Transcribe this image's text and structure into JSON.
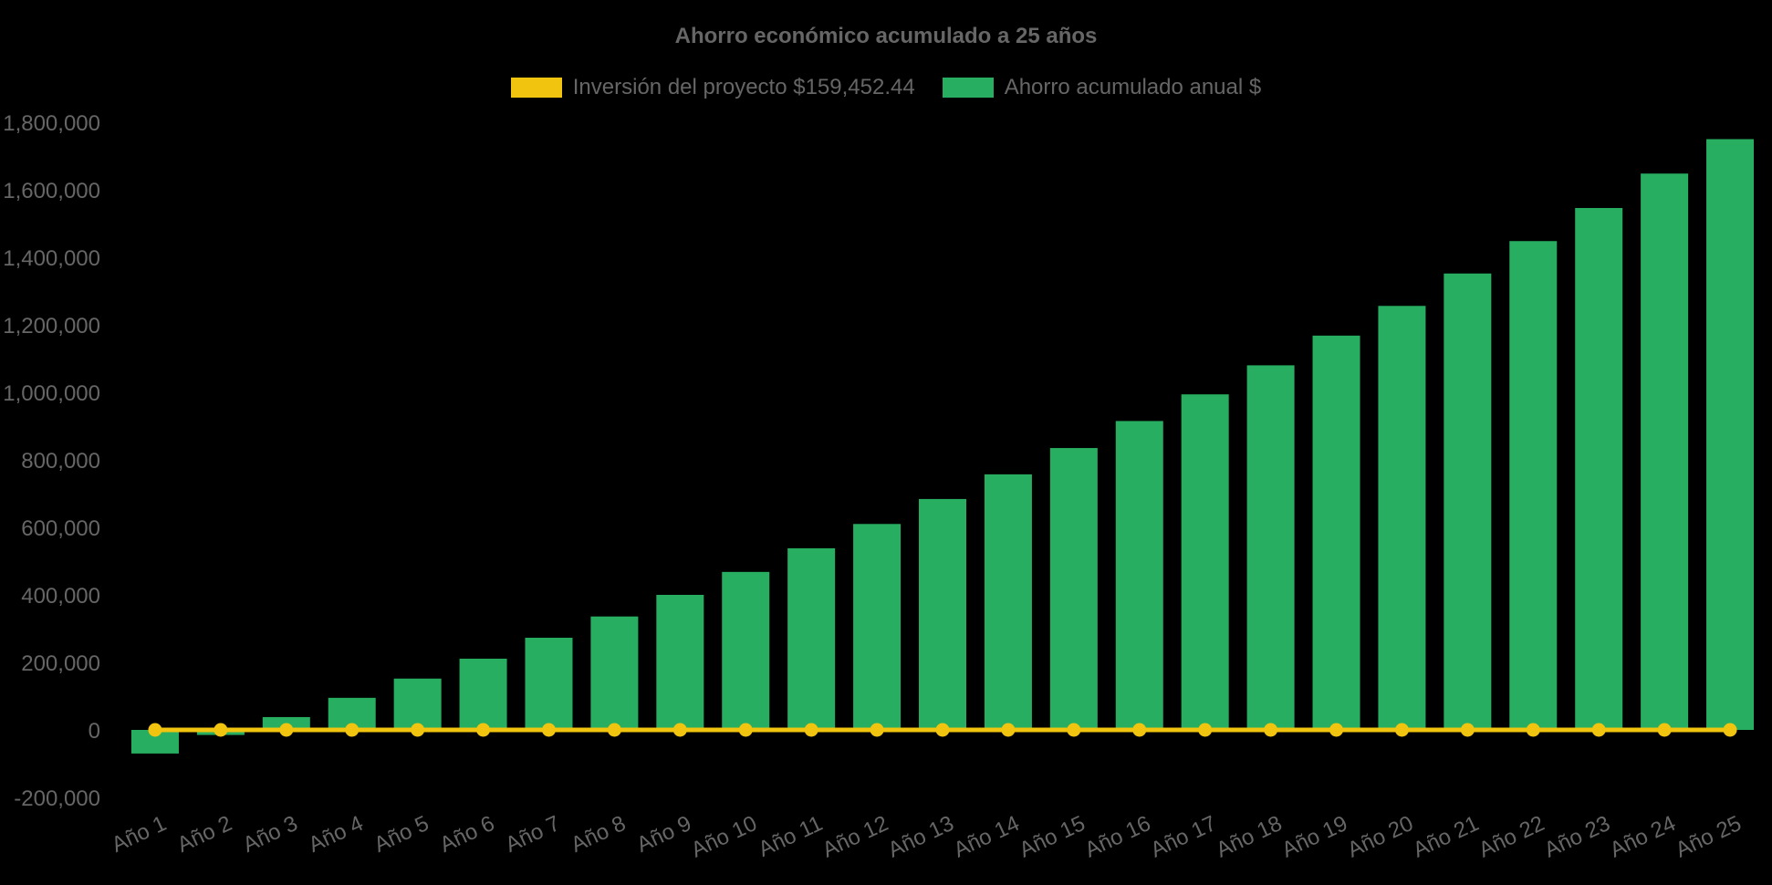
{
  "canvas": {
    "background": "#000000",
    "text_color": "#666666"
  },
  "chart_data": {
    "type": "bar",
    "title": "Ahorro económico acumulado a 25 años",
    "xlabel": "",
    "ylabel": "",
    "categories": [
      "Año 1",
      "Año 2",
      "Año 3",
      "Año 4",
      "Año 5",
      "Año 6",
      "Año 7",
      "Año 8",
      "Año 9",
      "Año 10",
      "Año 11",
      "Año 12",
      "Año 13",
      "Año 14",
      "Año 15",
      "Año 16",
      "Año 17",
      "Año 18",
      "Año 19",
      "Año 20",
      "Año 21",
      "Año 22",
      "Año 23",
      "Año 24",
      "Año 25"
    ],
    "series": [
      {
        "name": "Inversión del proyecto $159,452.44",
        "type": "line",
        "color": "#f1c40f",
        "point_style": "circle",
        "constant_value": 0
      },
      {
        "name": "Ahorro acumulado anual $",
        "type": "bar",
        "color": "#27ae60",
        "values": [
          -70000,
          -15000,
          38000,
          95000,
          152000,
          211000,
          273000,
          336000,
          400000,
          468000,
          538000,
          610000,
          684000,
          757000,
          835000,
          915000,
          994000,
          1080000,
          1168000,
          1256000,
          1352000,
          1448000,
          1546000,
          1648000,
          1750000
        ]
      }
    ],
    "ylim": [
      -200000,
      1800000
    ],
    "ytick_step": 200000,
    "ytick_labels": [
      "1,800,000",
      "1,600,000",
      "1,400,000",
      "1,200,000",
      "1,000,000",
      "800,000",
      "600,000",
      "400,000",
      "200,000",
      "0",
      "-200,000"
    ],
    "grid": false,
    "legend_position": "top",
    "x_label_rotation_deg": -25
  }
}
